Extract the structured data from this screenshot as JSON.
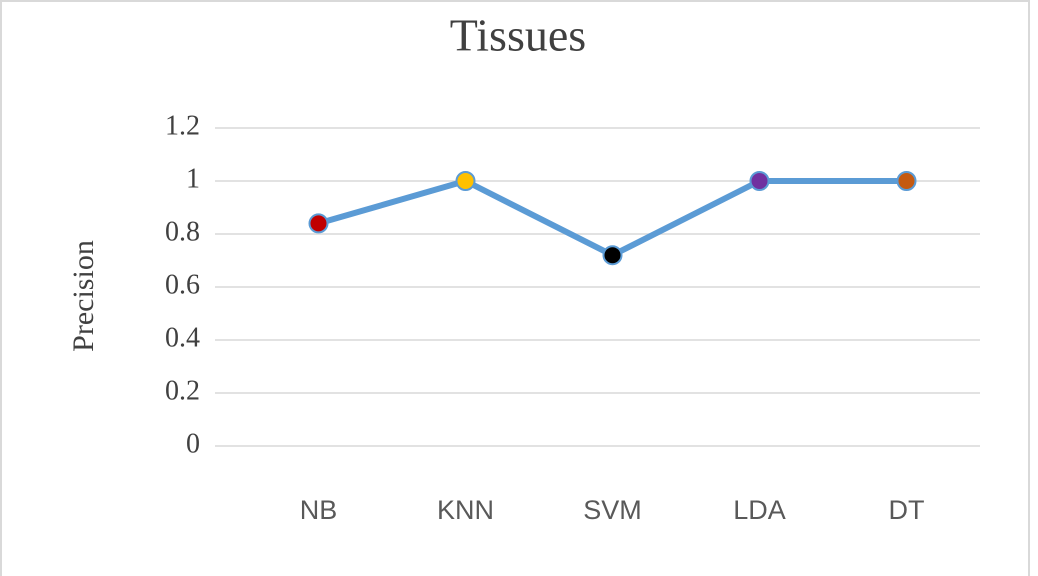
{
  "chart_data": {
    "type": "line",
    "title": "Tissues",
    "y_label": "Precision",
    "categories": [
      "NB",
      "KNN",
      "SVM",
      "LDA",
      "DT"
    ],
    "values": [
      0.84,
      1,
      0.72,
      1,
      1
    ],
    "color": "#5b9bd5",
    "point_colors": [
      "#c00000",
      "#ffc000",
      "#000000",
      "#7030a0",
      "#c55a11"
    ],
    "ylim": [
      0,
      1.2
    ],
    "yticks": [
      0,
      0.2,
      0.4,
      0.6,
      0.8,
      1,
      1.2
    ],
    "grid": true
  }
}
